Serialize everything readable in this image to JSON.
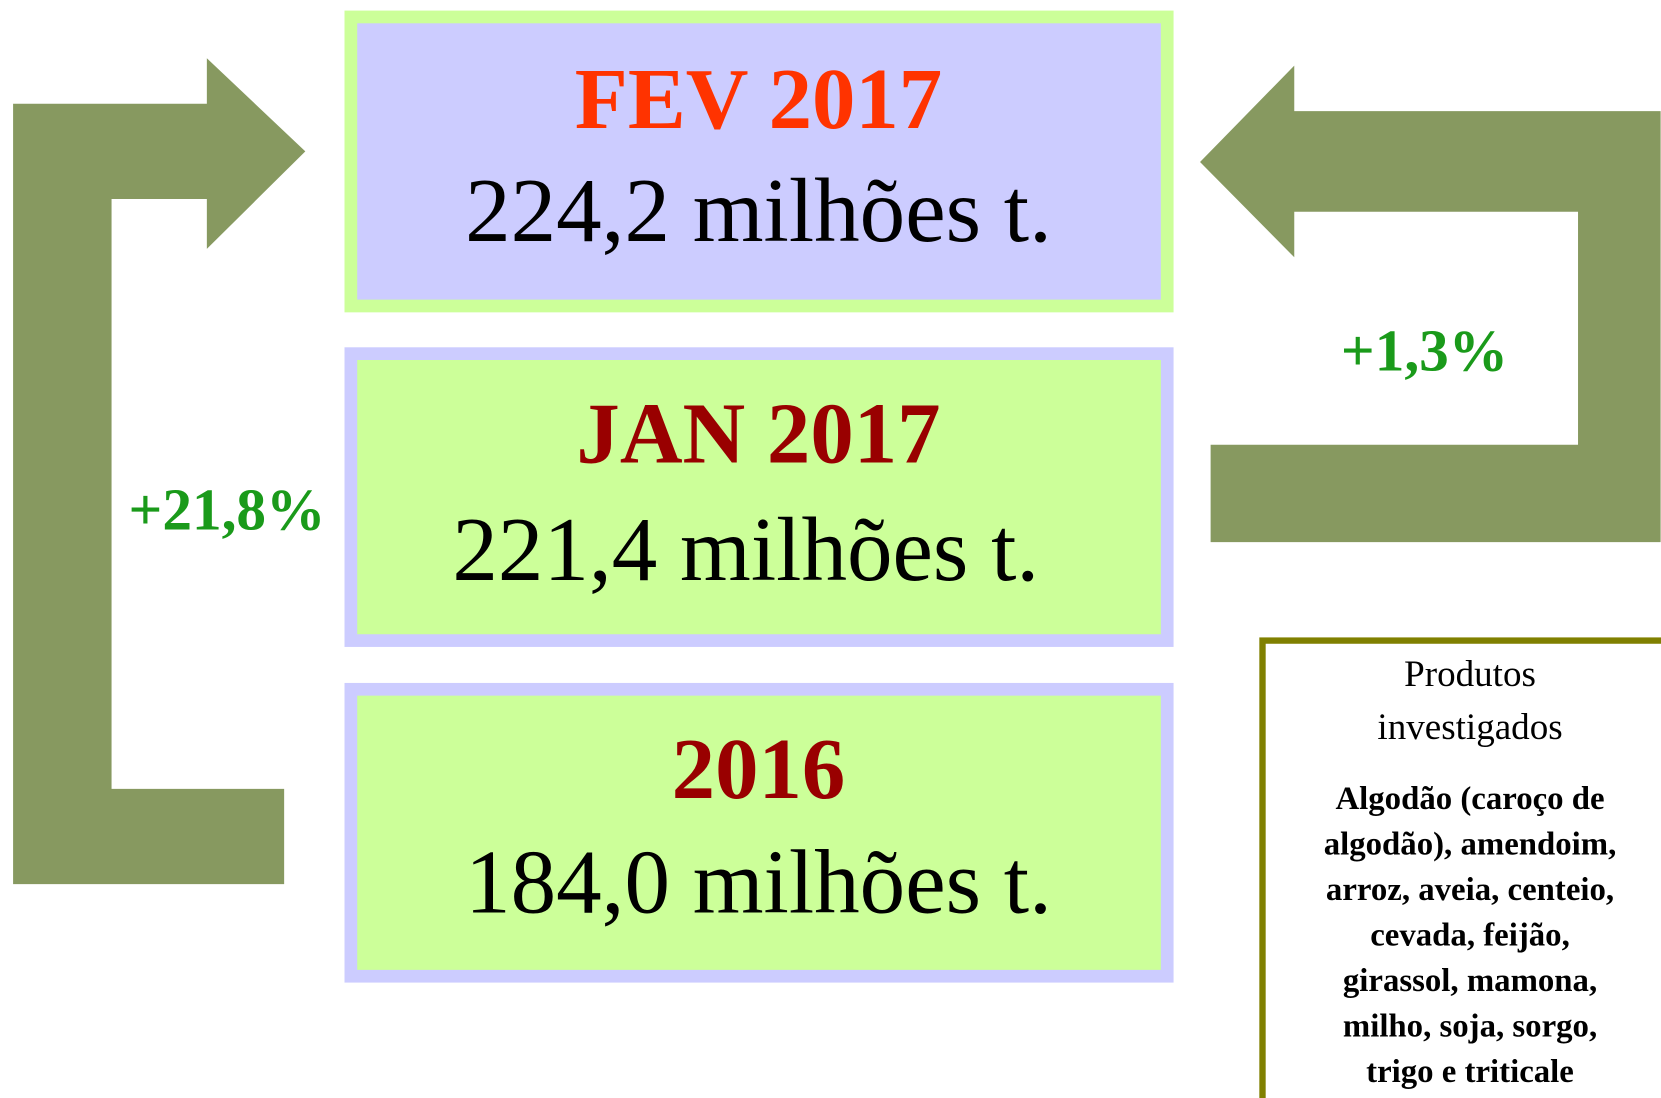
{
  "boxes": [
    {
      "title": "FEV 2017",
      "value": "224,2 milhões t."
    },
    {
      "title": "JAN 2017",
      "value": "221,4 milhões t."
    },
    {
      "title": "2016",
      "value": "184,0 milhões t."
    }
  ],
  "arrows": {
    "left_label": "+21,8%",
    "right_label": "+1,3%"
  },
  "products": {
    "title": [
      "Produtos",
      "investigados"
    ],
    "lines": [
      "Algodão (caroço de",
      "algodão), amendoim,",
      "arroz, aveia, centeio,",
      "cevada, feijão,",
      "girassol, mamona,",
      "milho, soja, sorgo,",
      "trigo e triticale"
    ]
  }
}
